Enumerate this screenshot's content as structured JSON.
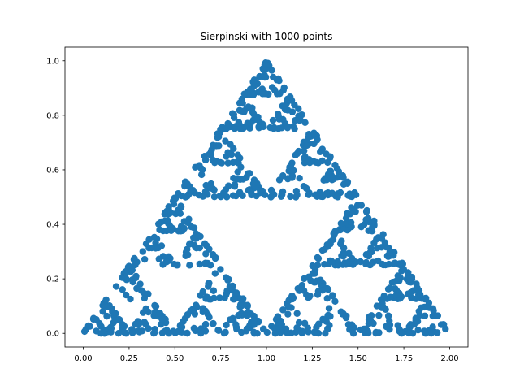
{
  "chart_data": {
    "type": "scatter",
    "title": "Sierpinski with 1000 points",
    "xlabel": "",
    "ylabel": "",
    "xlim": [
      -0.1,
      2.1
    ],
    "ylim": [
      -0.05,
      1.05
    ],
    "grid": false,
    "legend": "none",
    "color": "#1f77b4",
    "x_ticks": [
      {
        "value": 0.0,
        "label": "0.00"
      },
      {
        "value": 0.25,
        "label": "0.25"
      },
      {
        "value": 0.5,
        "label": "0.50"
      },
      {
        "value": 0.75,
        "label": "0.75"
      },
      {
        "value": 1.0,
        "label": "1.00"
      },
      {
        "value": 1.25,
        "label": "1.25"
      },
      {
        "value": 1.5,
        "label": "1.50"
      },
      {
        "value": 1.75,
        "label": "1.75"
      },
      {
        "value": 2.0,
        "label": "2.00"
      }
    ],
    "y_ticks": [
      {
        "value": 0.0,
        "label": "0.0"
      },
      {
        "value": 0.2,
        "label": "0.2"
      },
      {
        "value": 0.4,
        "label": "0.4"
      },
      {
        "value": 0.6,
        "label": "0.6"
      },
      {
        "value": 0.8,
        "label": "0.8"
      },
      {
        "value": 1.0,
        "label": "1.0"
      }
    ],
    "point_count": 1000,
    "series": [
      {
        "vertices": [
          [
            0,
            0
          ],
          [
            1,
            1
          ],
          [
            2,
            0
          ]
        ],
        "seed": [
          0.3,
          0.2
        ]
      }
    ]
  }
}
